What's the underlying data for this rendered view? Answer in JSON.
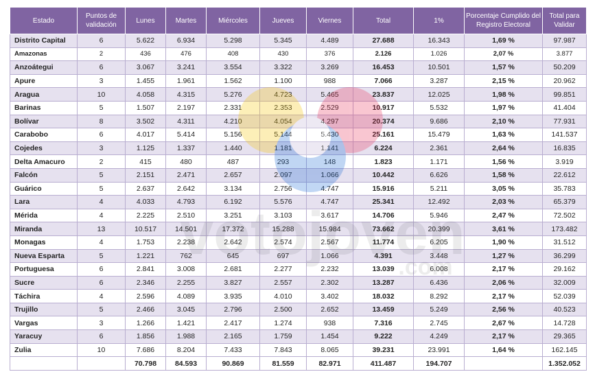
{
  "headers": [
    "Estado",
    "Puntos de validación",
    "Lunes",
    "Martes",
    "Miércoles",
    "Jueves",
    "Viernes",
    "Total",
    "1%",
    "Porcentaje Cumplido del Registro Electoral",
    "Total para Validar"
  ],
  "rows": [
    [
      "Distrito Capital",
      "6",
      "5.622",
      "6.934",
      "5.298",
      "5.345",
      "4.489",
      "27.688",
      "16.343",
      "1,69 %",
      "97.987"
    ],
    [
      "Amazonas",
      "2",
      "436",
      "476",
      "408",
      "430",
      "376",
      "2.126",
      "1.026",
      "2,07 %",
      "3.877"
    ],
    [
      "Anzoátegui",
      "6",
      "3.067",
      "3.241",
      "3.554",
      "3.322",
      "3.269",
      "16.453",
      "10.501",
      "1,57 %",
      "50.209"
    ],
    [
      "Apure",
      "3",
      "1.455",
      "1.961",
      "1.562",
      "1.100",
      "988",
      "7.066",
      "3.287",
      "2,15 %",
      "20.962"
    ],
    [
      "Aragua",
      "10",
      "4.058",
      "4.315",
      "5.276",
      "4.723",
      "5.465",
      "23.837",
      "12.025",
      "1,98 %",
      "99.851"
    ],
    [
      "Barinas",
      "5",
      "1.507",
      "2.197",
      "2.331",
      "2.353",
      "2.529",
      "10.917",
      "5.532",
      "1,97 %",
      "41.404"
    ],
    [
      "Bolívar",
      "8",
      "3.502",
      "4.311",
      "4.210",
      "4.054",
      "4.297",
      "20.374",
      "9.686",
      "2,10 %",
      "77.931"
    ],
    [
      "Carabobo",
      "6",
      "4.017",
      "5.414",
      "5.156",
      "5.144",
      "5.430",
      "25.161",
      "15.479",
      "1,63 %",
      "141.537"
    ],
    [
      "Cojedes",
      "3",
      "1.125",
      "1.337",
      "1.440",
      "1.181",
      "1.141",
      "6.224",
      "2.361",
      "2,64 %",
      "16.835"
    ],
    [
      "Delta Amacuro",
      "2",
      "415",
      "480",
      "487",
      "293",
      "148",
      "1.823",
      "1.171",
      "1,56 %",
      "3.919"
    ],
    [
      "Falcón",
      "5",
      "2.151",
      "2.471",
      "2.657",
      "2.097",
      "1.066",
      "10.442",
      "6.626",
      "1,58 %",
      "22.612"
    ],
    [
      "Guárico",
      "5",
      "2.637",
      "2.642",
      "3.134",
      "2.756",
      "4.747",
      "15.916",
      "5.211",
      "3,05 %",
      "35.783"
    ],
    [
      "Lara",
      "4",
      "4.033",
      "4.793",
      "6.192",
      "5.576",
      "4.747",
      "25.341",
      "12.492",
      "2,03 %",
      "65.379"
    ],
    [
      "Mérida",
      "4",
      "2.225",
      "2.510",
      "3.251",
      "3.103",
      "3.617",
      "14.706",
      "5.946",
      "2,47 %",
      "72.502"
    ],
    [
      "Miranda",
      "13",
      "10.517",
      "14.501",
      "17.372",
      "15.288",
      "15.984",
      "73.662",
      "20.399",
      "3,61 %",
      "173.482"
    ],
    [
      "Monagas",
      "4",
      "1.753",
      "2.238",
      "2.642",
      "2.574",
      "2.567",
      "11.774",
      "6.205",
      "1,90 %",
      "31.512"
    ],
    [
      "Nueva Esparta",
      "5",
      "1.221",
      "762",
      "645",
      "697",
      "1.066",
      "4.391",
      "3.448",
      "1,27 %",
      "36.299"
    ],
    [
      "Portuguesa",
      "6",
      "2.841",
      "3.008",
      "2.681",
      "2.277",
      "2.232",
      "13.039",
      "6.008",
      "2,17 %",
      "29.162"
    ],
    [
      "Sucre",
      "6",
      "2.346",
      "2.255",
      "3.827",
      "2.557",
      "2.302",
      "13.287",
      "6.436",
      "2,06 %",
      "32.009"
    ],
    [
      "Táchira",
      "4",
      "2.596",
      "4.089",
      "3.935",
      "4.010",
      "3.402",
      "18.032",
      "8.292",
      "2,17 %",
      "52.039"
    ],
    [
      "Trujillo",
      "5",
      "2.466",
      "3.045",
      "2.796",
      "2.500",
      "2.652",
      "13.459",
      "5.249",
      "2,56 %",
      "40.523"
    ],
    [
      "Vargas",
      "3",
      "1.266",
      "1.421",
      "2.417",
      "1.274",
      "938",
      "7.316",
      "2.745",
      "2,67 %",
      "14.728"
    ],
    [
      "Yaracuy",
      "6",
      "1.856",
      "1.988",
      "2.165",
      "1.759",
      "1.454",
      "9.222",
      "4.249",
      "2,17 %",
      "29.365"
    ],
    [
      "Zulia",
      "10",
      "7.686",
      "8.204",
      "7.433",
      "7.843",
      "8.065",
      "39.231",
      "23.991",
      "1,64 %",
      "162.145"
    ]
  ],
  "totals": [
    "",
    "",
    "70.798",
    "84.593",
    "90.869",
    "81.559",
    "82.971",
    "411.487",
    "194.707",
    "",
    "1.352.052"
  ],
  "watermark": {
    "brand": "votojoven",
    "suffix": ".com"
  },
  "colors": {
    "header_bg": "#8064a2",
    "stripe": "#e6e1ef"
  }
}
